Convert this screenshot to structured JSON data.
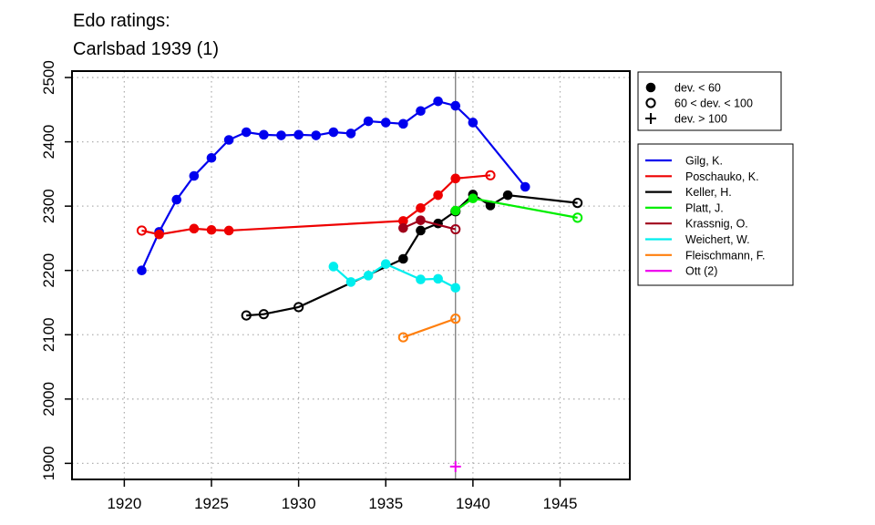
{
  "chart_data": {
    "type": "line",
    "title_lines": [
      "Edo ratings:",
      "Carlsbad 1939 (1)"
    ],
    "xlabel": "",
    "ylabel": "",
    "xlim": [
      1917,
      1949
    ],
    "ylim": [
      1875,
      2510
    ],
    "x_ticks": [
      1920,
      1925,
      1930,
      1935,
      1940,
      1945
    ],
    "y_ticks": [
      1900,
      2000,
      2100,
      2200,
      2300,
      2400,
      2500
    ],
    "grid": true,
    "reference_line_x": 1939,
    "marker_legend": [
      {
        "symbol": "filled-circle",
        "label": "dev. < 60"
      },
      {
        "symbol": "open-circle",
        "label": "60 < dev. < 100"
      },
      {
        "symbol": "plus",
        "label": "dev. > 100"
      }
    ],
    "series": [
      {
        "name": "Gilg, K.",
        "color": "#0000ee",
        "points": [
          [
            1921,
            2200,
            "f"
          ],
          [
            1922,
            2260,
            "f"
          ],
          [
            1923,
            2310,
            "f"
          ],
          [
            1924,
            2347,
            "f"
          ],
          [
            1925,
            2375,
            "f"
          ],
          [
            1926,
            2403,
            "f"
          ],
          [
            1927,
            2415,
            "f"
          ],
          [
            1928,
            2411,
            "f"
          ],
          [
            1929,
            2410,
            "f"
          ],
          [
            1930,
            2411,
            "f"
          ],
          [
            1931,
            2410,
            "f"
          ],
          [
            1932,
            2415,
            "f"
          ],
          [
            1933,
            2413,
            "f"
          ],
          [
            1934,
            2432,
            "f"
          ],
          [
            1935,
            2430,
            "f"
          ],
          [
            1936,
            2428,
            "f"
          ],
          [
            1937,
            2448,
            "f"
          ],
          [
            1938,
            2463,
            "f"
          ],
          [
            1939,
            2456,
            "f"
          ],
          [
            1940,
            2430,
            "f"
          ],
          [
            1943,
            2330,
            "f"
          ]
        ]
      },
      {
        "name": "Poschauko, K.",
        "color": "#ee0000",
        "points": [
          [
            1921,
            2262,
            "o"
          ],
          [
            1922,
            2256,
            "f"
          ],
          [
            1924,
            2265,
            "f"
          ],
          [
            1925,
            2263,
            "f"
          ],
          [
            1926,
            2262,
            "f"
          ],
          [
            1936,
            2277,
            "f"
          ],
          [
            1937,
            2297,
            "f"
          ],
          [
            1938,
            2317,
            "f"
          ],
          [
            1939,
            2343,
            "f"
          ],
          [
            1941,
            2348,
            "o"
          ]
        ]
      },
      {
        "name": "Keller, H.",
        "color": "#000000",
        "points": [
          [
            1927,
            2130,
            "o"
          ],
          [
            1928,
            2132,
            "o"
          ],
          [
            1930,
            2143,
            "o"
          ],
          [
            1936,
            2218,
            "f"
          ],
          [
            1937,
            2262,
            "f"
          ],
          [
            1938,
            2273,
            "f"
          ],
          [
            1939,
            2292,
            "o"
          ],
          [
            1940,
            2318,
            "f"
          ],
          [
            1941,
            2301,
            "f"
          ],
          [
            1942,
            2317,
            "f"
          ],
          [
            1946,
            2305,
            "o"
          ]
        ]
      },
      {
        "name": "Platt, J.",
        "color": "#00ee00",
        "points": [
          [
            1939,
            2293,
            "f"
          ],
          [
            1940,
            2312,
            "f"
          ],
          [
            1946,
            2282,
            "o"
          ]
        ]
      },
      {
        "name": "Krassnig, O.",
        "color": "#a0001a",
        "points": [
          [
            1936,
            2266,
            "f"
          ],
          [
            1937,
            2278,
            "f"
          ],
          [
            1939,
            2264,
            "o"
          ]
        ]
      },
      {
        "name": "Weichert, W.",
        "color": "#00eeee",
        "points": [
          [
            1932,
            2206,
            "f"
          ],
          [
            1933,
            2182,
            "f"
          ],
          [
            1934,
            2192,
            "f"
          ],
          [
            1935,
            2210,
            "f"
          ],
          [
            1937,
            2186,
            "f"
          ],
          [
            1938,
            2187,
            "f"
          ],
          [
            1939,
            2173,
            "f"
          ]
        ]
      },
      {
        "name": "Fleischmann, F.",
        "color": "#ff7f0e",
        "points": [
          [
            1936,
            2096,
            "o"
          ],
          [
            1939,
            2125,
            "o"
          ]
        ]
      },
      {
        "name": "Ott (2)",
        "color": "#ee00ee",
        "points": [
          [
            1939,
            1895,
            "p"
          ]
        ]
      }
    ]
  }
}
